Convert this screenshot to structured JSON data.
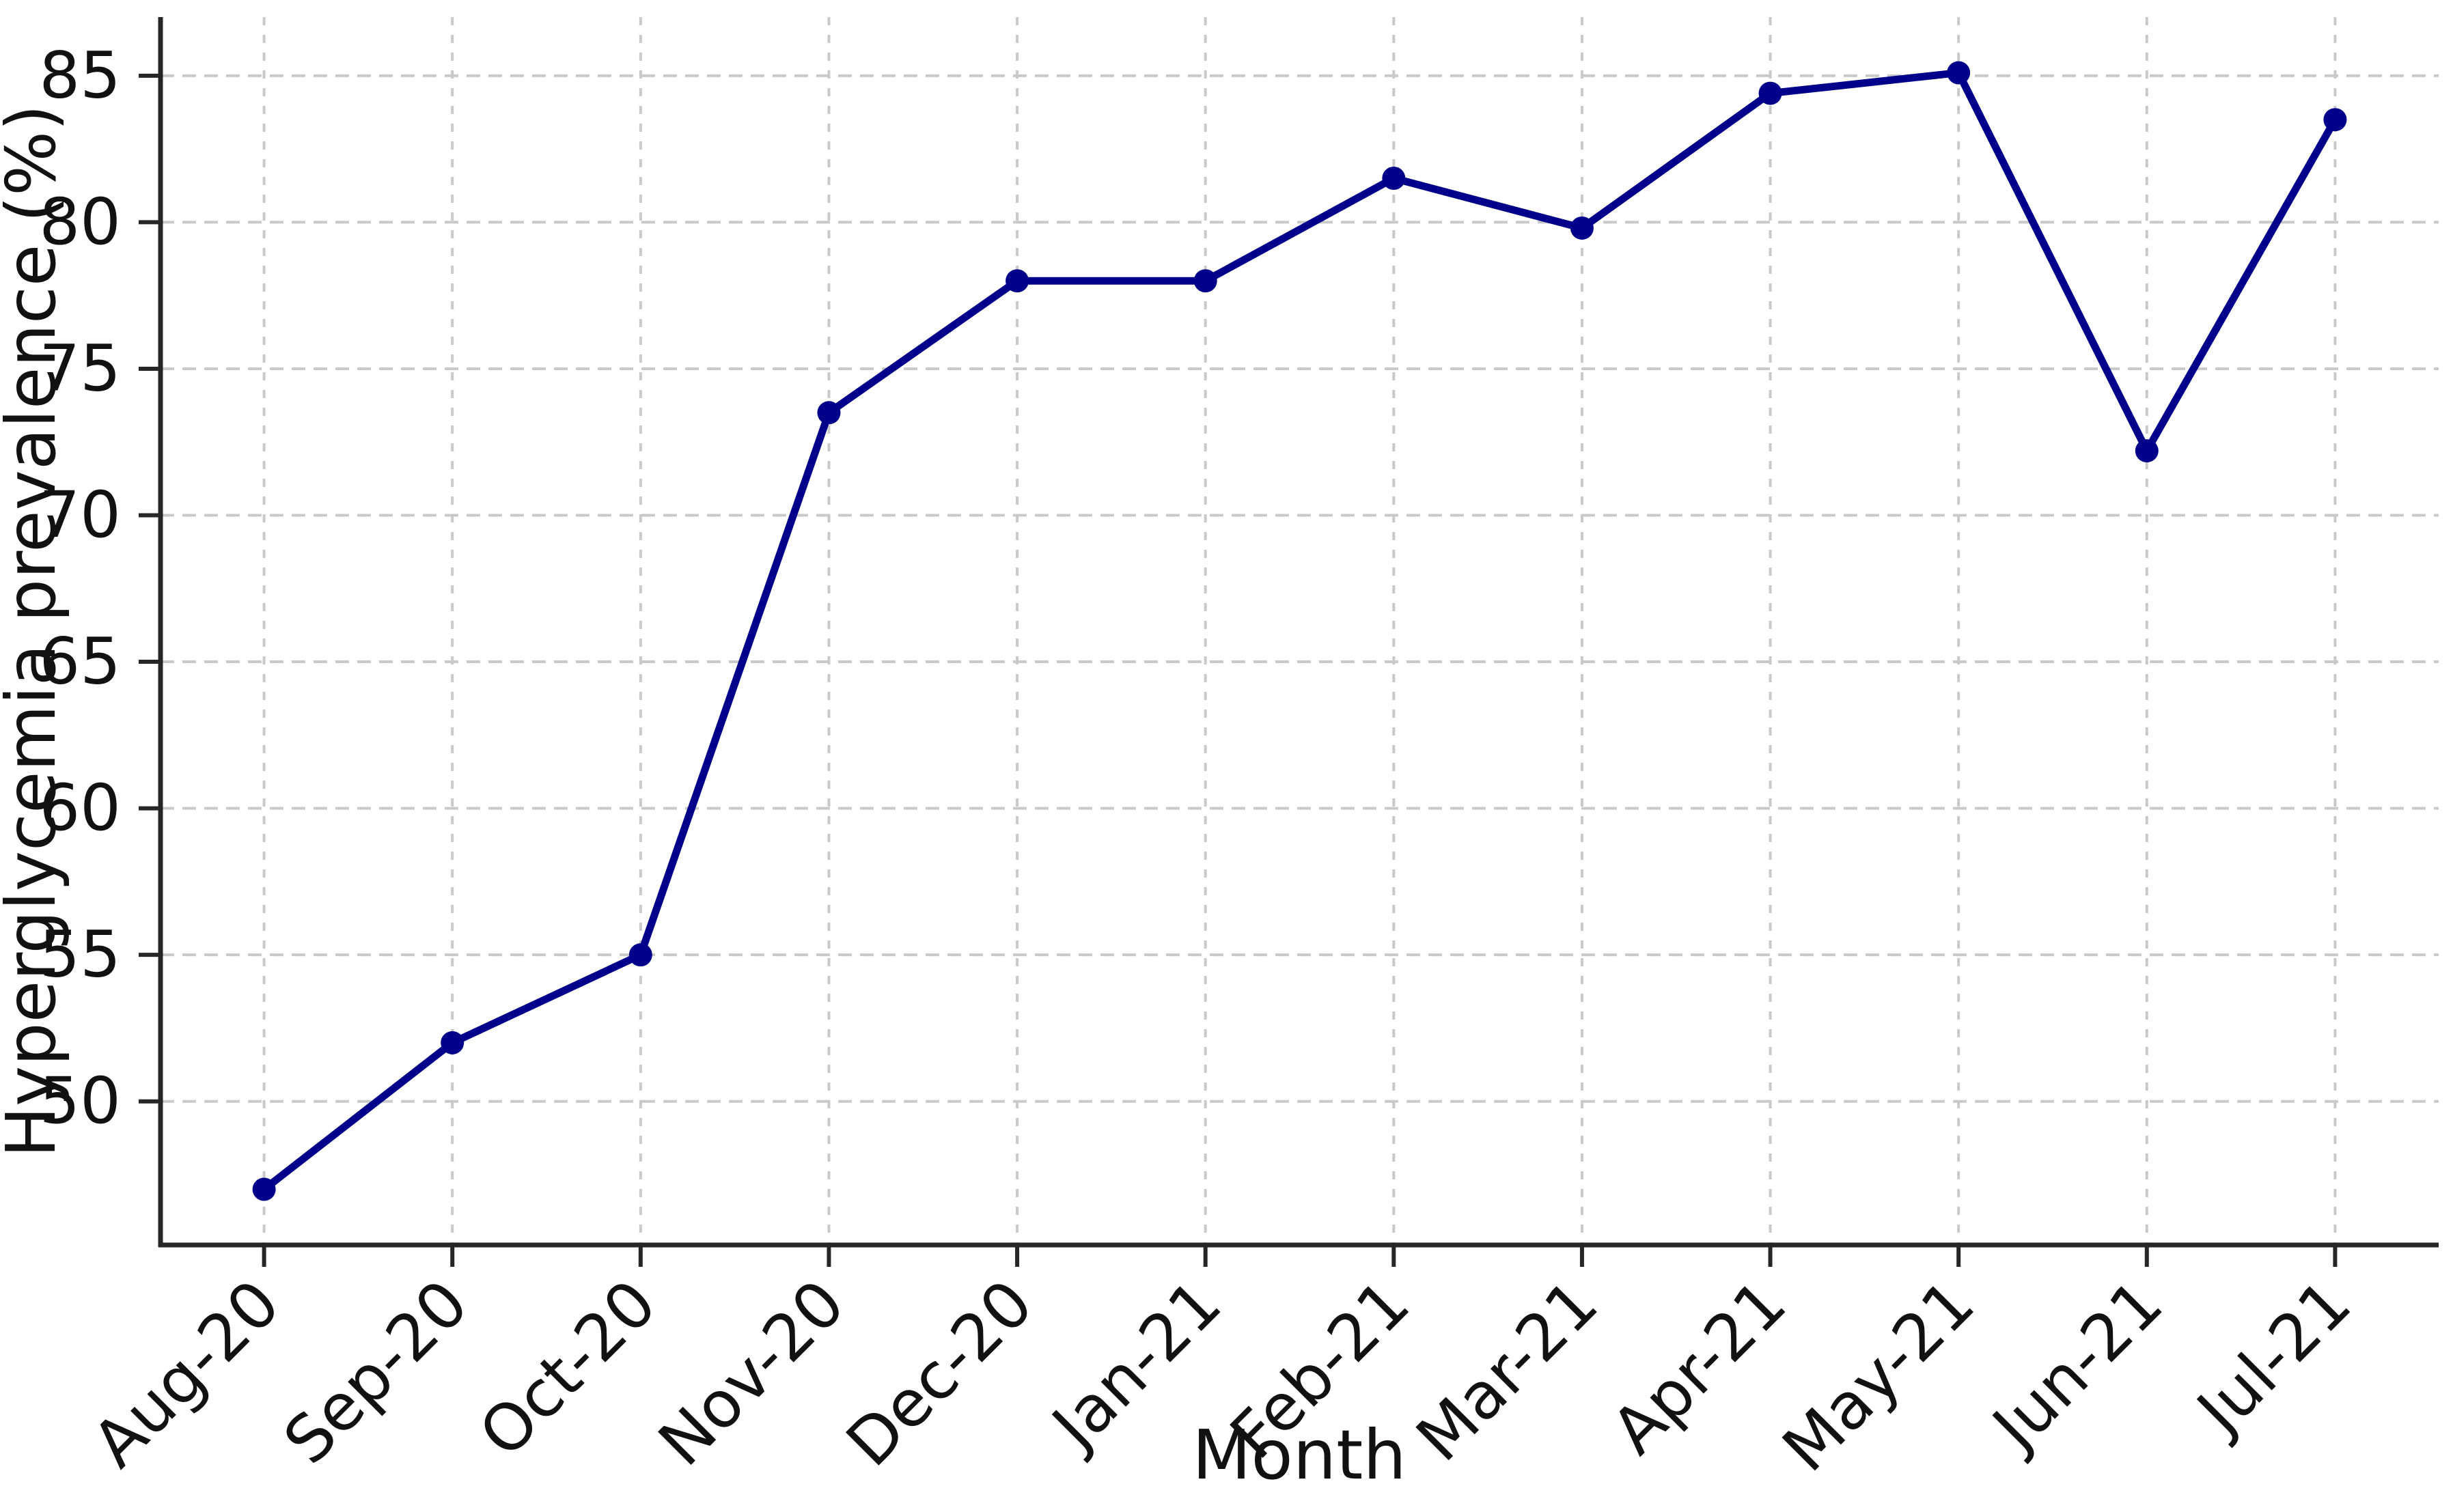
{
  "chart_data": {
    "type": "line",
    "title": "",
    "xlabel": "Month",
    "ylabel": "Hyperglycemia prevalence (%)",
    "categories": [
      "Aug-20",
      "Sep-20",
      "Oct-20",
      "Nov-20",
      "Dec-20",
      "Jan-21",
      "Feb-21",
      "Mar-21",
      "Apr-21",
      "May-21",
      "Jun-21",
      "Jul-21"
    ],
    "values": [
      47.0,
      52.0,
      55.0,
      73.5,
      78.0,
      78.0,
      81.5,
      79.8,
      84.4,
      85.1,
      72.2,
      83.5
    ],
    "yticks": [
      50,
      55,
      60,
      65,
      70,
      75,
      80,
      85
    ],
    "ylim": [
      45.1,
      87.0
    ],
    "x_margin": 0.55,
    "grid": true,
    "grid_style": "dashed",
    "legend_position": "none",
    "marker": "circle",
    "line_color": "#00008b",
    "grid_color": "#c9c9c9",
    "axis_color": "#262626",
    "text_color": "#111111",
    "background": "#ffffff",
    "x_tick_rotation_deg": 45
  }
}
